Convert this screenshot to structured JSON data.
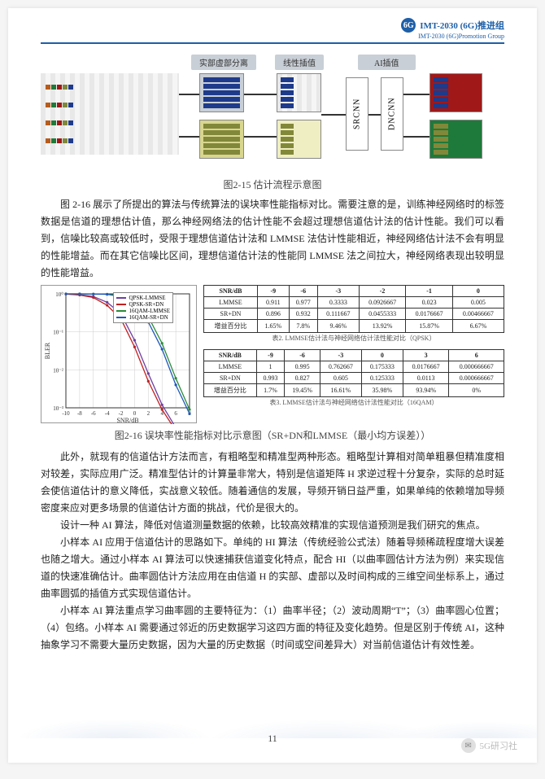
{
  "header": {
    "logo_text": "6G",
    "title_cn": "IMT-2030 (6G)推进组",
    "title_en": "IMT-2030 (6G)Promotion Group"
  },
  "diagram": {
    "label1": "实部虚部分离",
    "label2": "线性插值",
    "label3": "AI插值",
    "node1": "SRCNN",
    "node2": "DNCNN",
    "colors": {
      "blue": "#1e3a8a",
      "orange": "#b85c1c",
      "olive": "#828839",
      "green": "#1e7a3a",
      "red": "#a01818",
      "linegray": "#6b7280",
      "boxbg": "#c9cfd6",
      "border": "#555"
    }
  },
  "caption_2_15": "图2-15 估计流程示意图",
  "para1": "图 2-16 展示了所提出的算法与传统算法的误块率性能指标对比。需要注意的是，训练神经网络时的标签数据是信道的理想估计值，那么神经网络法的估计性能不会超过理想信道估计法的估计性能。我们可以看到，信噪比较高或较低时，受限于理想信道估计法和 LMMSE 法估计性能相近，神经网络估计法不会有明显的性能增益。而在其它信噪比区间，理想信道估计法的性能同 LMMSE 法之间拉大，神经网络表现出较明显的性能增益。",
  "chart": {
    "xlabel": "SNR/dB",
    "ylabel": "BLER",
    "xlim": [
      -10,
      8
    ],
    "ylim_log": [
      -3,
      0
    ],
    "xticks": [
      -10,
      -8,
      -6,
      -4,
      -2,
      0,
      2,
      4,
      6,
      8
    ],
    "series": [
      {
        "name": "QPSK-LMMSE",
        "color": "#6e3fa0",
        "x": [
          -10,
          -8,
          -6,
          -4,
          -2,
          0,
          2,
          4,
          6
        ],
        "y": [
          0.99,
          0.95,
          0.85,
          0.6,
          0.3,
          0.06,
          0.008,
          0.0012,
          0.0003
        ]
      },
      {
        "name": "QPSK-SR+DN",
        "color": "#c02020",
        "x": [
          -10,
          -8,
          -6,
          -4,
          -2,
          0,
          2,
          4,
          6
        ],
        "y": [
          0.99,
          0.93,
          0.8,
          0.5,
          0.22,
          0.04,
          0.005,
          0.0009,
          0.00025
        ]
      },
      {
        "name": "16QAM-LMMSE",
        "color": "#2a8a3a",
        "x": [
          -10,
          -8,
          -6,
          -4,
          -2,
          0,
          2,
          4,
          6,
          8
        ],
        "y": [
          1,
          1,
          0.99,
          0.98,
          0.9,
          0.65,
          0.25,
          0.05,
          0.006,
          0.0009
        ]
      },
      {
        "name": "16QAM-SR+DN",
        "color": "#2058b8",
        "x": [
          -10,
          -8,
          -6,
          -4,
          -2,
          0,
          2,
          4,
          6,
          8
        ],
        "y": [
          1,
          1,
          0.99,
          0.97,
          0.85,
          0.55,
          0.18,
          0.035,
          0.004,
          0.0007
        ]
      }
    ],
    "legend_items": [
      "QPSK-LMMSE",
      "QPSK-SR+DN",
      "16QAM-LMMSE",
      "16QAM-SR+DN"
    ]
  },
  "table1": {
    "header": [
      "SNR/dB",
      "-9",
      "-6",
      "-3",
      "-2",
      "-1",
      "0"
    ],
    "rows": [
      [
        "LMMSE",
        "0.911",
        "0.977",
        "0.3333",
        "0.0926667",
        "0.023",
        "0.005"
      ],
      [
        "SR+DN",
        "0.896",
        "0.932",
        "0.111667",
        "0.0455333",
        "0.0176667",
        "0.00466667"
      ],
      [
        "增益百分比",
        "1.65%",
        "7.8%",
        "9.46%",
        "13.92%",
        "15.87%",
        "6.67%"
      ]
    ],
    "caption": "表2. LMMSE估计法与神经网络估计法性能对比（QPSK）"
  },
  "table2": {
    "header": [
      "SNR/dB",
      "-9",
      "-6",
      "-3",
      "0",
      "3",
      "6"
    ],
    "rows": [
      [
        "LMMSE",
        "1",
        "0.995",
        "0.762667",
        "0.175333",
        "0.0176667",
        "0.000666667"
      ],
      [
        "SR+DN",
        "0.993",
        "0.827",
        "0.605",
        "0.125333",
        "0.0113",
        "0.000666667"
      ],
      [
        "增益百分比",
        "1.7%",
        "19.45%",
        "16.61%",
        "35.98%",
        "93.94%",
        "0%"
      ]
    ],
    "caption": "表3. LMMSE估计法与神经网络估计法性能对比（16QAM）"
  },
  "caption_2_16": "图2-16 误块率性能指标对比示意图（SR+DN和LMMSE（最小均方误差））",
  "para2": "此外，就现有的信道估计方法而言，有粗略型和精准型两种形态。粗略型计算相对简单粗暴但精准度相对较差，实际应用广泛。精准型估计的计算量非常大，特别是信道矩阵 H 求逆过程十分复杂，实际的总时延会使信道估计的意义降低，实战意义较低。随着通信的发展，导频开销日益严重，如果单纯的依赖增加导频密度来应对更多场景的信道估计方面的挑战，代价是很大的。",
  "para3": "设计一种 AI 算法，降低对信道测量数据的依赖，比较高效精准的实现信道预测是我们研究的焦点。",
  "para4": "小样本 AI 应用于信道估计的思路如下。单纯的 HI 算法（传统经验公式法）随着导频稀疏程度增大误差也随之增大。通过小样本 AI 算法可以快速捕获信道变化特点，配合 HI（以曲率圆估计方法为例）来实现信道的快速准确估计。曲率圆估计方法应用在由信道 H 的实部、虚部以及时间构成的三维空间坐标系上，通过曲率圆弧的插值方式实现信道估计。",
  "para5": "小样本 AI 算法重点学习曲率圆的主要特征为：（1）曲率半径；（2）波动周期“T”；（3）曲率圆心位置；（4）包络。小样本 AI 需要通过邻近的历史数据学习这四方面的特征及变化趋势。但是区别于传统 AI，这种抽象学习不需要大量历史数据，因为大量的历史数据（时间或空间差异大）对当前信道估计有效性差。",
  "page_number": "11",
  "watermark": "5G研习社"
}
